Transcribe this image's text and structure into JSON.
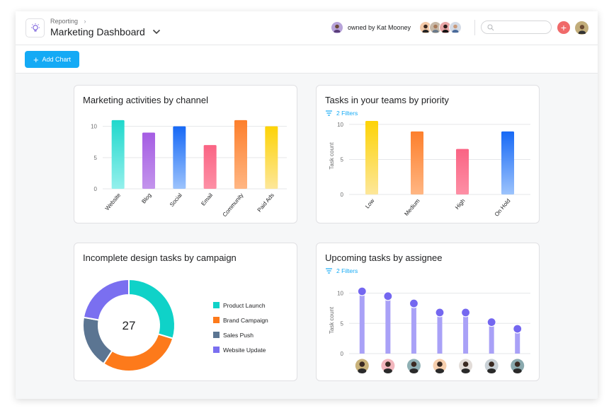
{
  "header": {
    "breadcrumb": "Reporting",
    "breadcrumb_separator": "›",
    "title": "Marketing Dashboard",
    "owner_text": "owned by Kat Mooney",
    "icons": {
      "logo": "lightbulb-icon",
      "title_dropdown": "chevron-down-icon",
      "search": "search-icon",
      "add": "plus-icon"
    },
    "members": [
      {
        "name": "member-1",
        "color": "#f3c9a8"
      },
      {
        "name": "member-2",
        "color": "#c7b9a8"
      },
      {
        "name": "member-3",
        "color": "#e8a6a6"
      },
      {
        "name": "member-4",
        "color": "#d4dbe6"
      }
    ],
    "owner_avatar_color": "#b7a3d9",
    "current_user_avatar_color": "#c2ad7a",
    "search_placeholder": ""
  },
  "toolbar": {
    "add_chart_label": "Add Chart",
    "add_chart_icon": "+"
  },
  "colors": {
    "accent": "#14aaf5",
    "add_button": "#f06a6a"
  },
  "chart_data": [
    {
      "id": "marketing-activities",
      "type": "bar",
      "title": "Marketing activities by channel",
      "categories": [
        "Website",
        "Blog",
        "Social",
        "Email",
        "Community",
        "Paid Ads"
      ],
      "values": [
        11,
        9,
        10,
        7,
        11,
        10
      ],
      "colors": [
        [
          "#1fd8cc",
          "#94f0ec"
        ],
        [
          "#a55de3",
          "#c394ec"
        ],
        [
          "#1769f6",
          "#9cc3fc"
        ],
        [
          "#fa6484",
          "#fd8fa5"
        ],
        [
          "#fd7f2c",
          "#ffb683"
        ],
        [
          "#fdd306",
          "#fde79a"
        ]
      ],
      "xlabel": "",
      "ylabel": "",
      "yticks": [
        0,
        5,
        10
      ],
      "ylim": [
        0,
        12
      ],
      "grid": true
    },
    {
      "id": "tasks-by-priority",
      "type": "bar",
      "title": "Tasks in your teams by priority",
      "filters_label": "2 Filters",
      "categories": [
        "Low",
        "Medium",
        "High",
        "On Hold"
      ],
      "values": [
        10.5,
        9,
        6.5,
        9
      ],
      "colors": [
        [
          "#fdd306",
          "#fde79a"
        ],
        [
          "#fd7f2c",
          "#ffb683"
        ],
        [
          "#fa6484",
          "#fd8fa5"
        ],
        [
          "#1769f6",
          "#9cc3fc"
        ]
      ],
      "xlabel": "",
      "ylabel": "Task count",
      "yticks": [
        0,
        5,
        10
      ],
      "ylim": [
        0,
        11
      ],
      "grid": true
    },
    {
      "id": "design-tasks-by-campaign",
      "type": "pie",
      "title": "Incomplete design tasks by campaign",
      "total_label": "27",
      "slices": [
        {
          "label": "Product Launch",
          "value": 8,
          "color": "#0fd2c8"
        },
        {
          "label": "Brand Campaign",
          "value": 8,
          "color": "#fd7a1b"
        },
        {
          "label": "Sales Push",
          "value": 5,
          "color": "#5b7592"
        },
        {
          "label": "Website Update",
          "value": 6,
          "color": "#7a6ff0"
        }
      ]
    },
    {
      "id": "upcoming-by-assignee",
      "type": "bar",
      "title": "Upcoming tasks by assignee",
      "filters_label": "2 Filters",
      "categories": [
        "assignee-1",
        "assignee-2",
        "assignee-3",
        "assignee-4",
        "assignee-5",
        "assignee-6",
        "assignee-7"
      ],
      "values": [
        10.3,
        9.5,
        8.3,
        6.8,
        6.8,
        5.2,
        4.1
      ],
      "avatar_colors": [
        "#c9b27a",
        "#f2b6bd",
        "#8fb0b4",
        "#f6cfae",
        "#e2dcd8",
        "#c9d1d6",
        "#8aa9ae"
      ],
      "bar_color": "#a9a1f7",
      "dot_color": "#7467f0",
      "xlabel": "",
      "ylabel": "Task count",
      "yticks": [
        0,
        5,
        10
      ],
      "ylim": [
        0,
        11
      ],
      "grid": true
    }
  ]
}
